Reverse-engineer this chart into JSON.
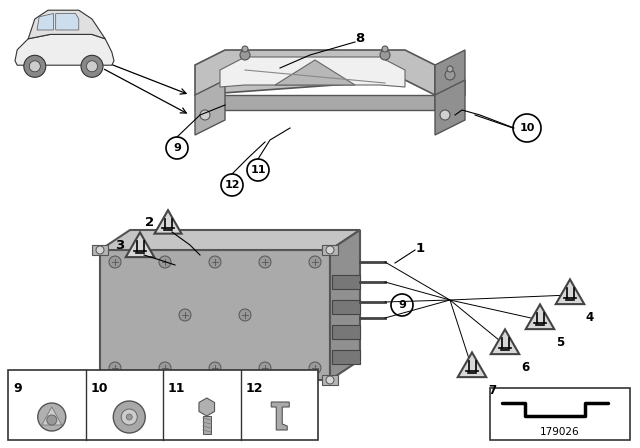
{
  "bg_color": "#ffffff",
  "part_number": "179026",
  "bottom_labels": [
    "9",
    "10",
    "11",
    "12"
  ]
}
